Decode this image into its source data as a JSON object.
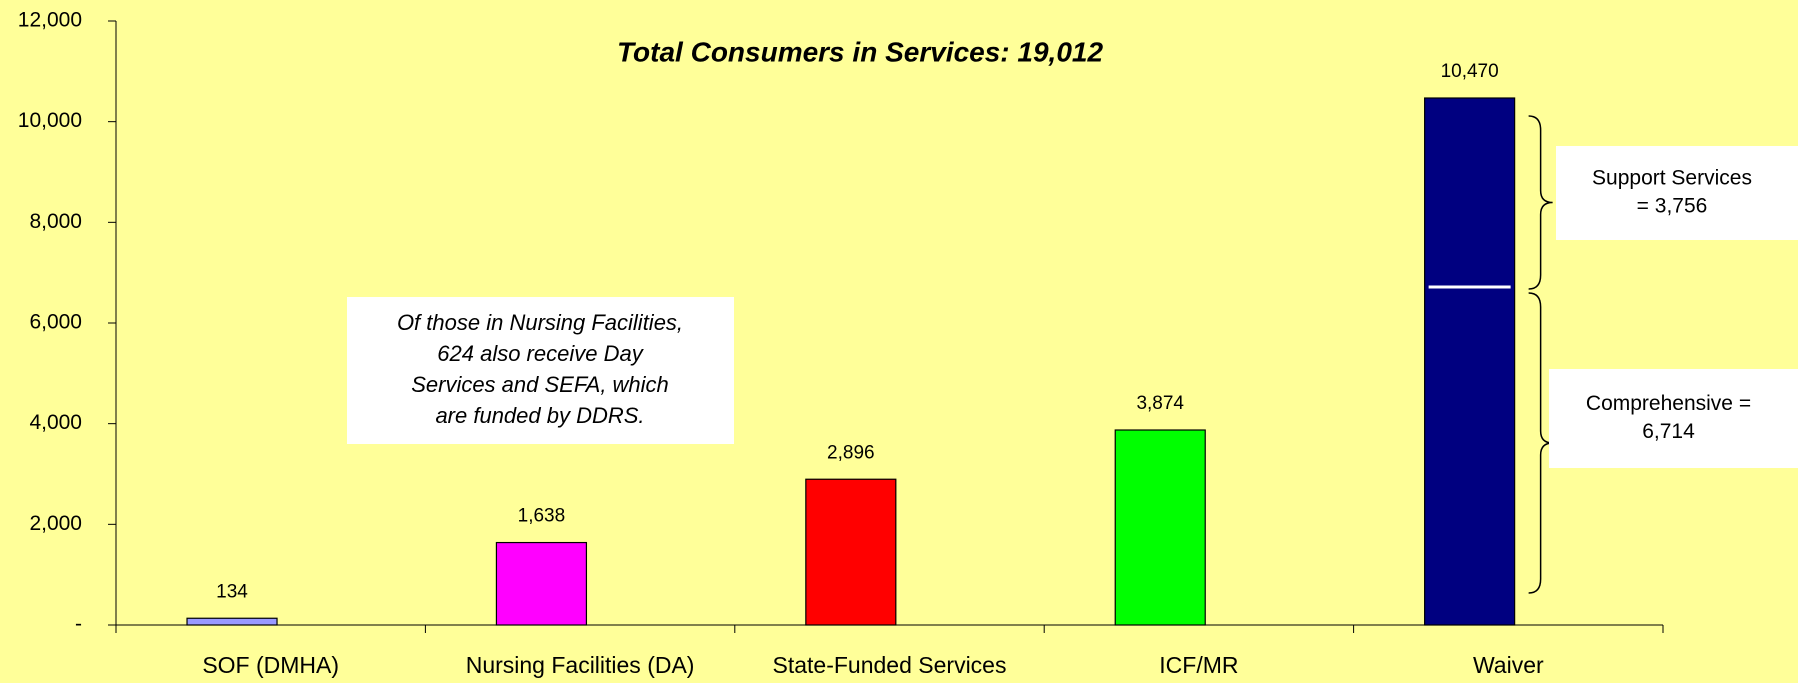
{
  "chart_data": {
    "type": "bar",
    "title": "Total Consumers in Services: 19,012",
    "categories": [
      "SOF (DMHA)",
      "Nursing Facilities (DA)",
      "State-Funded Services",
      "ICF/MR",
      "Waiver"
    ],
    "values": [
      134,
      1638,
      2896,
      3874,
      10470
    ],
    "value_labels": [
      "134",
      "1,638",
      "2,896",
      "3,874",
      "10,470"
    ],
    "colors": [
      "#9999ff",
      "#ff00ff",
      "#ff0000",
      "#00ff00",
      "#000080"
    ],
    "ylim": [
      0,
      12000
    ],
    "yticks": [
      {
        "value": 0,
        "label": "-"
      },
      {
        "value": 2000,
        "label": "2,000"
      },
      {
        "value": 4000,
        "label": "4,000"
      },
      {
        "value": 6000,
        "label": "6,000"
      },
      {
        "value": 8000,
        "label": "8,000"
      },
      {
        "value": 10000,
        "label": "10,000"
      },
      {
        "value": 12000,
        "label": "12,000"
      }
    ],
    "annotations": [
      {
        "lines": [
          "Of those in Nursing Facilities,",
          "624 also receive Day",
          "Services and SEFA, which",
          "are funded by DDRS."
        ]
      },
      {
        "lines": [
          "Support Services",
          "= 3,756"
        ],
        "value": 3756
      },
      {
        "lines": [
          "Comprehensive =",
          "6,714"
        ],
        "value": 6714
      }
    ]
  }
}
